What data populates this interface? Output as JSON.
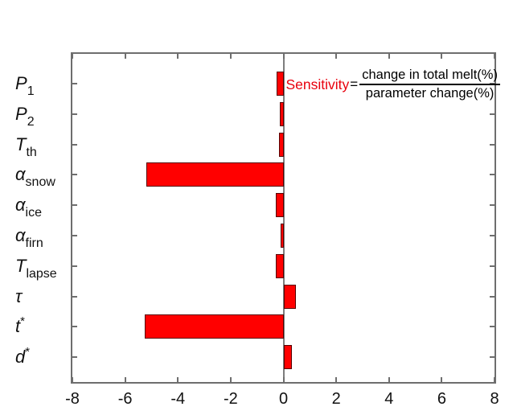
{
  "figure": {
    "background": "#ffffff"
  },
  "annotation": {
    "label": "Sensitivity",
    "equals": "=",
    "numerator": "change in total melt(%)",
    "denominator": "parameter change(%)",
    "label_color": "#e8000d",
    "text_color": "#000000"
  },
  "chart_data": {
    "type": "bar",
    "orientation": "horizontal",
    "title": "",
    "xlabel": "",
    "ylabel": "",
    "xlim": [
      -8,
      8
    ],
    "xticks": [
      -8,
      -6,
      -4,
      -2,
      0,
      2,
      4,
      6,
      8
    ],
    "grid": false,
    "zero_line": true,
    "legend": "none",
    "bar_color": "#ff0000",
    "bar_edge_color": "#550000",
    "axis_color": "#6e6e6e",
    "zero_line_color": "#7d7d7d",
    "tick_label_color": "#111111",
    "categories": [
      {
        "text": "P_1",
        "base": "P",
        "script": "1",
        "mode": "sub"
      },
      {
        "text": "P_2",
        "base": "P",
        "script": "2",
        "mode": "sub"
      },
      {
        "text": "T_th",
        "base": "T",
        "script": "th",
        "mode": "sub"
      },
      {
        "text": "α_snow",
        "base": "α",
        "script": "snow",
        "mode": "sub"
      },
      {
        "text": "α_ice",
        "base": "α",
        "script": "ice",
        "mode": "sub"
      },
      {
        "text": "α_firn",
        "base": "α",
        "script": "firn",
        "mode": "sub"
      },
      {
        "text": "T_lapse",
        "base": "T",
        "script": "lapse",
        "mode": "sub"
      },
      {
        "text": "τ",
        "base": "τ",
        "script": "",
        "mode": "none"
      },
      {
        "text": "t*",
        "base": "t",
        "script": "*",
        "mode": "sup"
      },
      {
        "text": "d*",
        "base": "d",
        "script": "*",
        "mode": "sup"
      }
    ],
    "values": [
      -0.25,
      -0.15,
      -0.17,
      -5.2,
      -0.3,
      -0.12,
      -0.3,
      0.48,
      -5.25,
      0.33
    ]
  }
}
